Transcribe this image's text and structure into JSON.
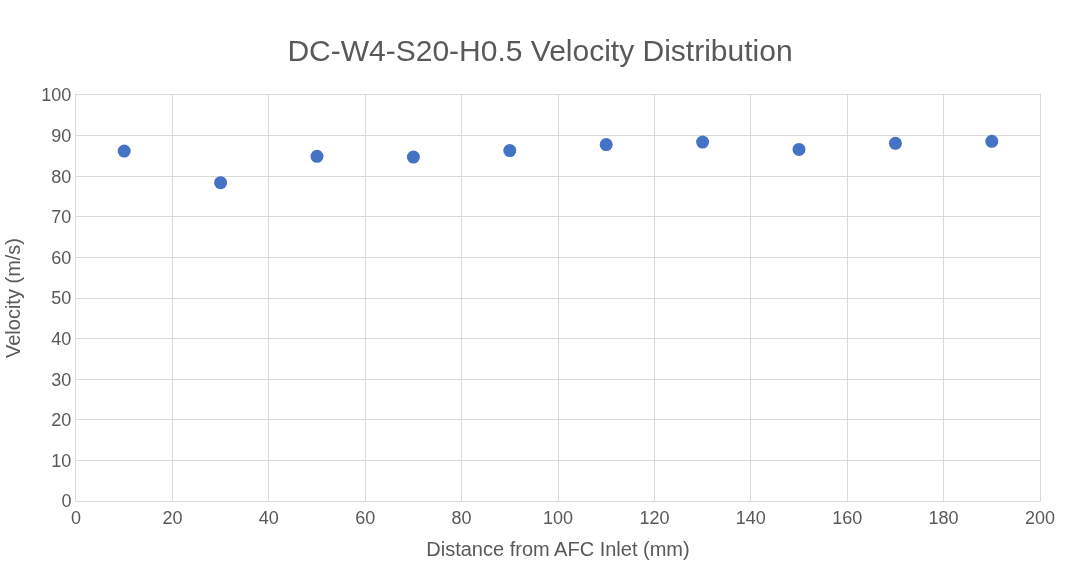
{
  "chart_data": {
    "type": "scatter",
    "title": "DC-W4-S20-H0.5 Velocity Distribution",
    "xlabel": "Distance from AFC Inlet (mm)",
    "ylabel": "Velocity (m/s)",
    "x": [
      10,
      30,
      50,
      70,
      90,
      110,
      130,
      150,
      170,
      190
    ],
    "series": [
      {
        "color": "#4472c4",
        "values": [
          86.2,
          78.4,
          84.9,
          84.7,
          86.3,
          87.8,
          88.4,
          86.6,
          88.1,
          88.6
        ]
      }
    ],
    "xlim": [
      0,
      200
    ],
    "xticks": [
      0,
      20,
      40,
      60,
      80,
      100,
      120,
      140,
      160,
      180,
      200
    ],
    "ylim": [
      0,
      100
    ],
    "yticks": [
      0,
      10,
      20,
      30,
      40,
      50,
      60,
      70,
      80,
      90,
      100
    ],
    "grid": true,
    "marker": "circle"
  }
}
